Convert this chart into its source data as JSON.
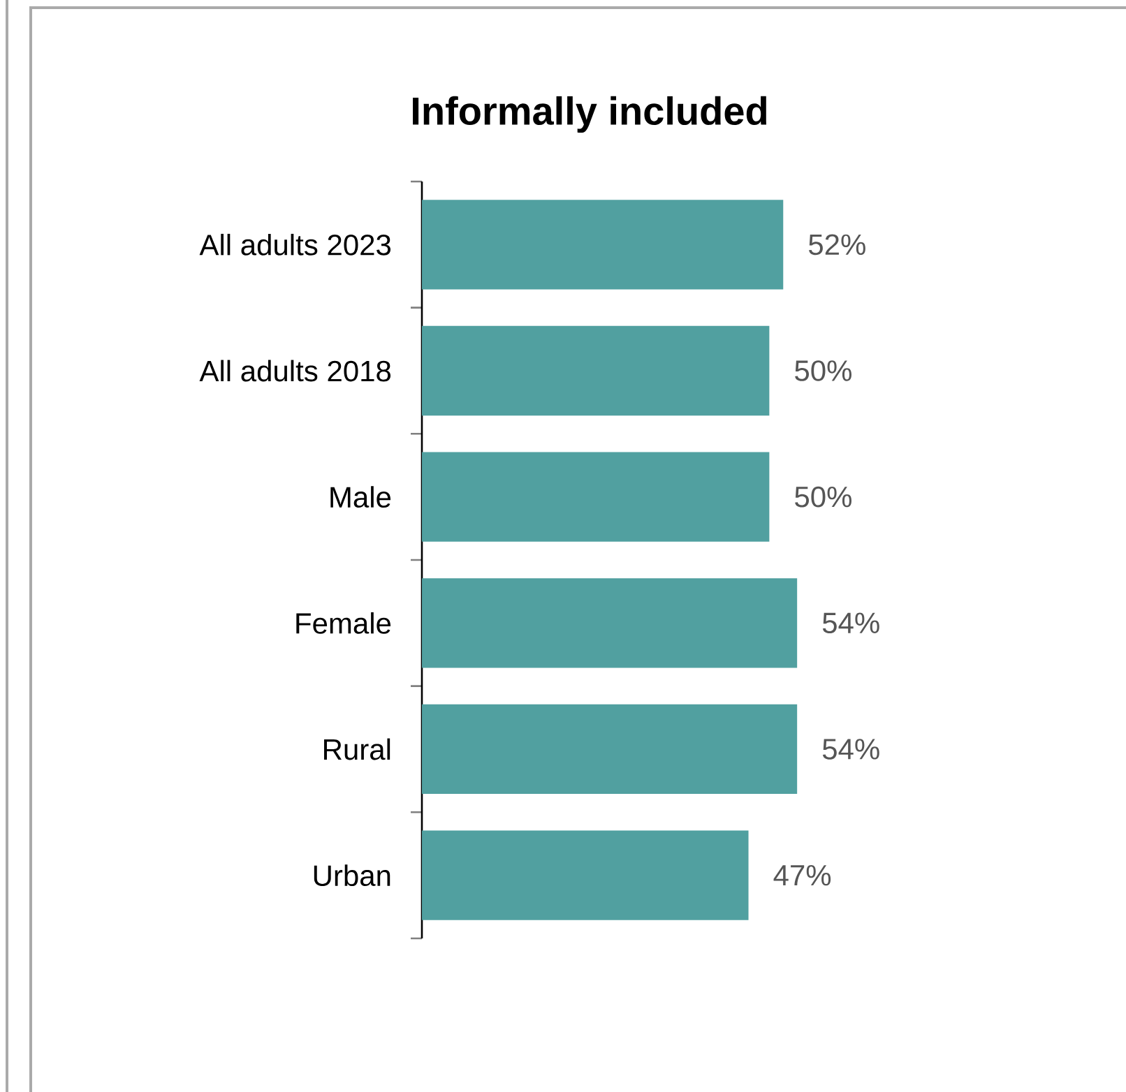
{
  "chart_data": {
    "type": "bar",
    "orientation": "horizontal",
    "title": "Informally included",
    "categories": [
      "All adults 2023",
      "All adults 2018",
      "Male",
      "Female",
      "Rural",
      "Urban"
    ],
    "values": [
      52,
      50,
      50,
      54,
      54,
      47
    ],
    "value_labels": [
      "52%",
      "50%",
      "50%",
      "54%",
      "54%",
      "47%"
    ],
    "color": "#51a0a0"
  }
}
